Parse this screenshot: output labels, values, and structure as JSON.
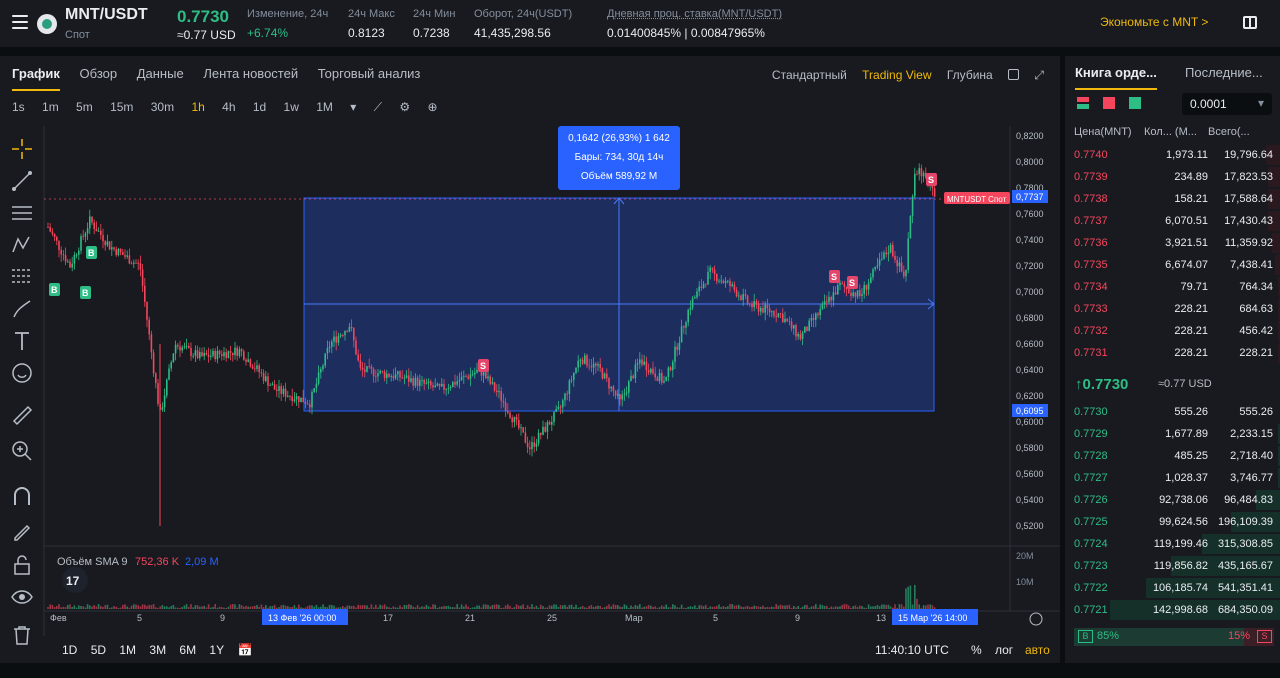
{
  "header": {
    "pair": "MNT/USDT",
    "market": "Спот",
    "last_price": "0.7730",
    "last_usd": "≈0.77 USD",
    "stats": [
      {
        "label": "Изменение, 24ч",
        "value": "+6.74%"
      },
      {
        "label": "24ч Макс",
        "value": "0.8123"
      },
      {
        "label": "24ч Мин",
        "value": "0.7238"
      },
      {
        "label": "Оборот, 24ч(USDT)",
        "value": "41,435,298.56"
      },
      {
        "label": "Дневная проц. ставка(MNT/USDT)",
        "value": "0.01400845% | 0.00847965%"
      }
    ],
    "save_link": "Экономьте с MNT >"
  },
  "chart_tabs": [
    "График",
    "Обзор",
    "Данные",
    "Лента новостей",
    "Торговый анализ"
  ],
  "view_modes": [
    "Стандартный",
    "Trading View",
    "Глубина"
  ],
  "timeframes": [
    "1s",
    "1m",
    "5m",
    "15m",
    "30m",
    "1h",
    "4h",
    "1d",
    "1w",
    "1M"
  ],
  "active_timeframe": "1h",
  "range_buttons": [
    "1D",
    "5D",
    "1M",
    "3M",
    "6M",
    "1Y"
  ],
  "clock": "11:40:10 UTC",
  "scale_buttons": {
    "percent": "%",
    "log": "лог",
    "auto": "авто"
  },
  "measure_box": {
    "line1": "0,1642 (26,93%) 1 642",
    "line2": "Бары: 734, 30д 14ч",
    "line3": "Объём 589,92 M"
  },
  "volume_legend": {
    "label": "Объём SMA 9",
    "v1": "752,36 K",
    "v2": "2,09 M"
  },
  "price_labels": {
    "current": "0,7737",
    "spot_tag": "MNTUSDT Спот",
    "low_box": "0,6095"
  },
  "x_labels": {
    "start": "Фев",
    "t5": "5",
    "t9": "9",
    "t17": "17",
    "t21": "21",
    "t25": "25",
    "mar": "Мар",
    "m5": "5",
    "m9": "9",
    "m13": "13",
    "sel_start": "13 Фев '26   00:00",
    "sel_end": "15 Мар '26   14:00"
  },
  "y_ticks": [
    "0,8200",
    "0,8000",
    "0,7800",
    "0,7600",
    "0,7400",
    "0,7200",
    "0,7000",
    "0,6800",
    "0,6600",
    "0,6400",
    "0,6200",
    "0,6000",
    "0,5800",
    "0,5600",
    "0,5400",
    "0,5200"
  ],
  "vol_ticks": [
    "20M",
    "10M"
  ],
  "orderbook": {
    "tab_book": "Книга орде...",
    "tab_trades": "Последние...",
    "precision": "0.0001",
    "cols": [
      "Цена(MNT)",
      "Кол... (М...",
      "Всего(..."
    ],
    "asks": [
      [
        "0.7740",
        "1,973.11",
        "19,796.64",
        0.08
      ],
      [
        "0.7739",
        "234.89",
        "17,823.53",
        0.07
      ],
      [
        "0.7738",
        "158.21",
        "17,588.64",
        0.07
      ],
      [
        "0.7737",
        "6,070.51",
        "17,430.43",
        0.07
      ],
      [
        "0.7736",
        "3,921.51",
        "11,359.92",
        0.05
      ],
      [
        "0.7735",
        "6,674.07",
        "7,438.41",
        0.03
      ],
      [
        "0.7734",
        "79.71",
        "764.34",
        0.01
      ],
      [
        "0.7733",
        "228.21",
        "684.63",
        0.01
      ],
      [
        "0.7732",
        "228.21",
        "456.42",
        0.01
      ],
      [
        "0.7731",
        "228.21",
        "228.21",
        0.01
      ]
    ],
    "mid_price": "↑0.7730",
    "mid_usd": "≈0.77 USD",
    "bids": [
      [
        "0.7730",
        "555.26",
        "555.26",
        0.0
      ],
      [
        "0.7729",
        "1,677.89",
        "2,233.15",
        0.01
      ],
      [
        "0.7728",
        "485.25",
        "2,718.40",
        0.01
      ],
      [
        "0.7727",
        "1,028.37",
        "3,746.77",
        0.01
      ],
      [
        "0.7726",
        "92,738.06",
        "96,484.83",
        0.14
      ],
      [
        "0.7725",
        "99,624.56",
        "196,109.39",
        0.29
      ],
      [
        "0.7724",
        "119,199.46",
        "315,308.85",
        0.46
      ],
      [
        "0.7723",
        "119,856.82",
        "435,165.67",
        0.64
      ],
      [
        "0.7722",
        "106,185.74",
        "541,351.41",
        0.79
      ],
      [
        "0.7721",
        "142,998.68",
        "684,350.09",
        1.0
      ]
    ],
    "buy_ratio": "85%",
    "sell_ratio": "15%",
    "buy_label": "B",
    "sell_label": "S"
  },
  "colors": {
    "up": "#2ebd85",
    "down": "#f6465d",
    "accent": "#f0b90b",
    "measure": "#2962ff"
  }
}
